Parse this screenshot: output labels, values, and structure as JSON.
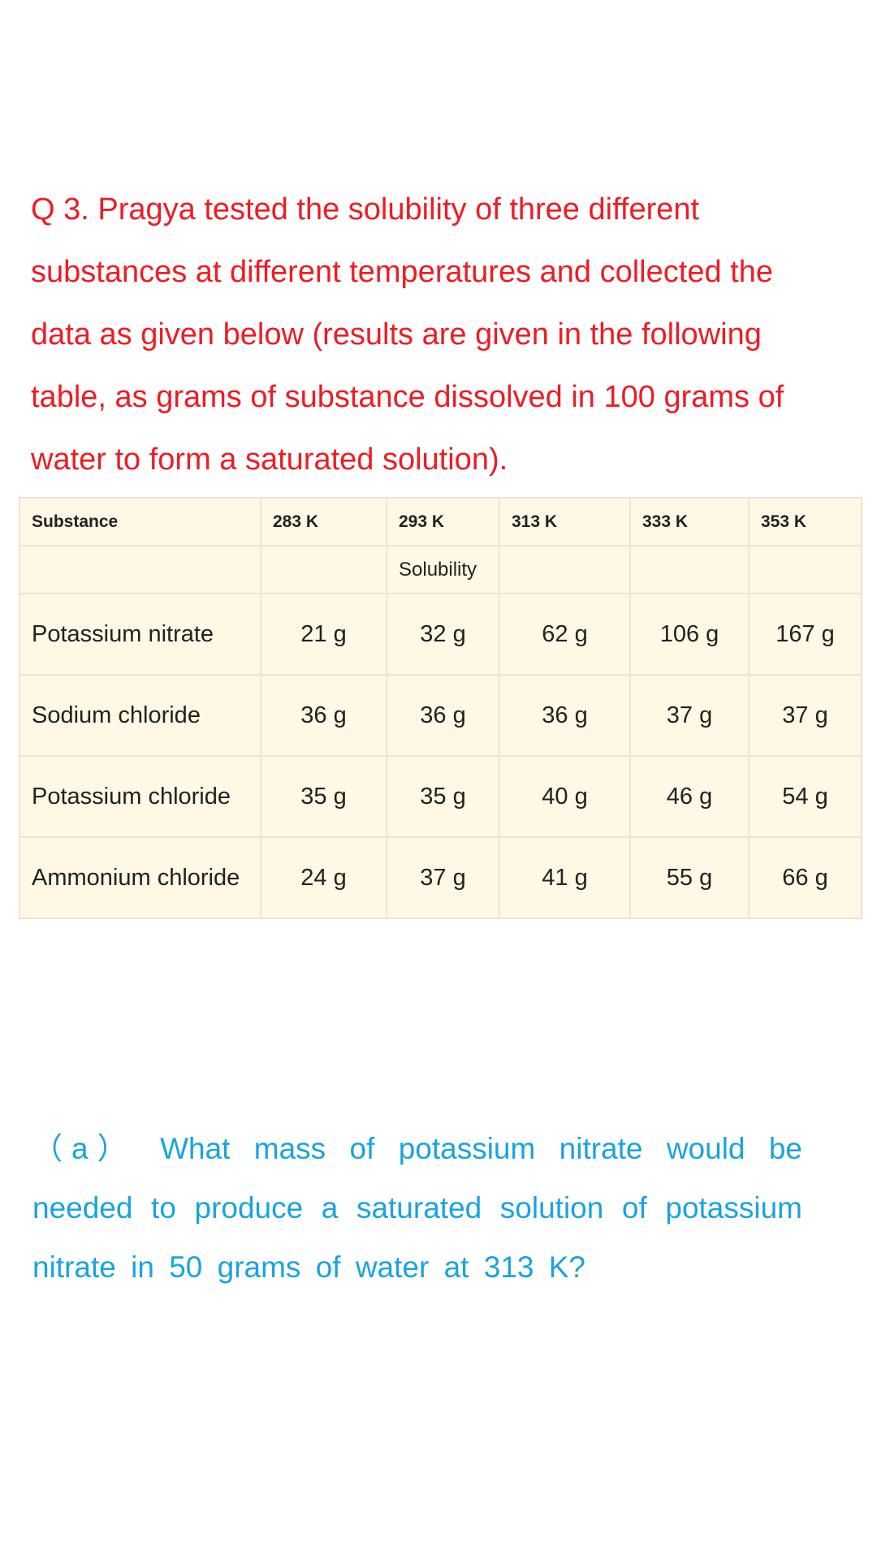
{
  "question": {
    "text": "Q  3. Pragya tested the solubility of three different substances at different temperatures and collected the data as given below (results are given in the following table, as grams of substance dissolved in 100 grams of water to form a saturated solution)."
  },
  "table": {
    "header": [
      "Substance",
      "283 K",
      "293 K",
      "313 K",
      "333 K",
      "353 K"
    ],
    "subheader": "Solubility",
    "rows": [
      [
        "Potassium nitrate",
        "21 g",
        "32 g",
        "62 g",
        "106 g",
        "167 g"
      ],
      [
        "Sodium chloride",
        "36 g",
        "36 g",
        "36 g",
        "37 g",
        "37 g"
      ],
      [
        "Potassium chloride",
        "35 g",
        "35 g",
        "40 g",
        "46 g",
        "54 g"
      ],
      [
        "Ammonium chloride",
        "24 g",
        "37 g",
        "41 g",
        "55 g",
        "66 g"
      ]
    ]
  },
  "part_a": {
    "text": "（a） What mass of potassium nitrate would be needed to produce a saturated solution of potassium nitrate in 50 grams of water at 313 K?"
  }
}
